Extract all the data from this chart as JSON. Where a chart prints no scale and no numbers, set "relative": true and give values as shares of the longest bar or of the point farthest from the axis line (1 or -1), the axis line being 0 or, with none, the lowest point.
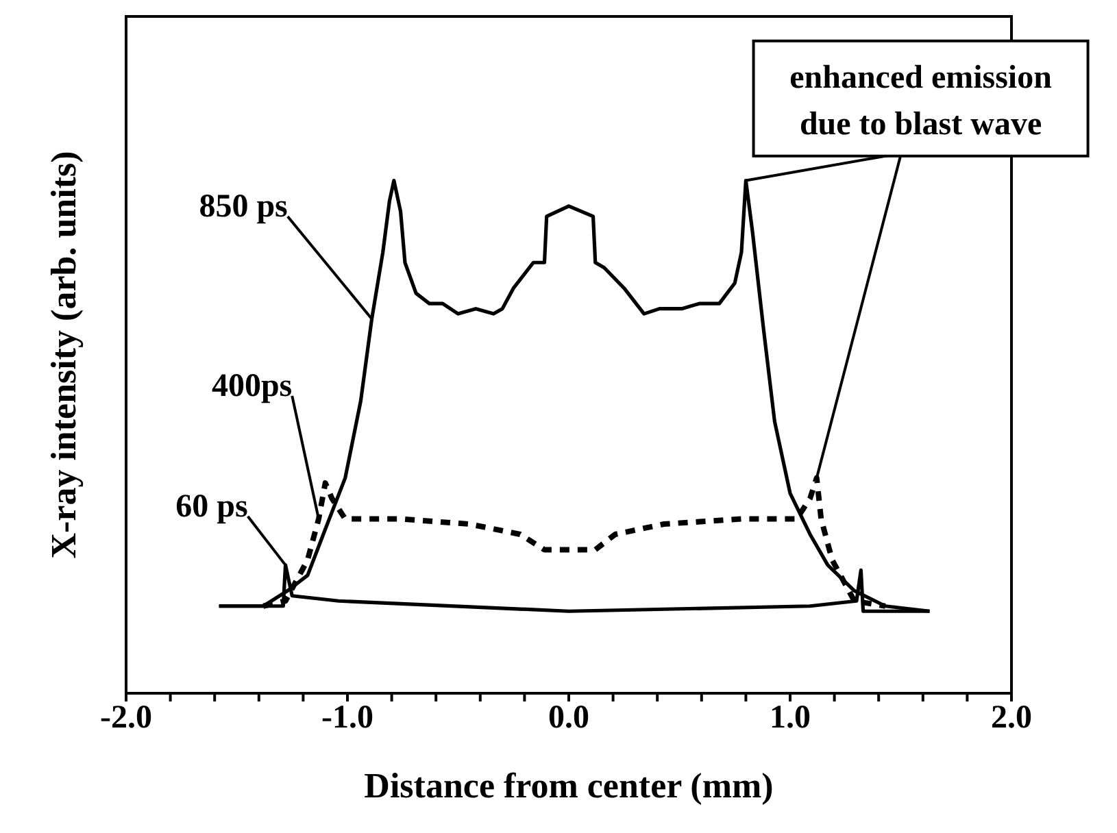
{
  "chart_data": {
    "type": "line",
    "relative": true,
    "xlabel": "Distance from center (mm)",
    "ylabel": "X-ray intensity (arb. units)",
    "xlim": [
      -2,
      2
    ],
    "xticks": [
      {
        "value": -2,
        "label": "-2.0"
      },
      {
        "value": -1.8,
        "label": null
      },
      {
        "value": -1.6,
        "label": null
      },
      {
        "value": -1.4,
        "label": null
      },
      {
        "value": -1.2,
        "label": null
      },
      {
        "value": -1,
        "label": "-1.0"
      },
      {
        "value": -0.8,
        "label": null
      },
      {
        "value": -0.6,
        "label": null
      },
      {
        "value": -0.4,
        "label": null
      },
      {
        "value": -0.2,
        "label": null
      },
      {
        "value": 0,
        "label": "0.0"
      },
      {
        "value": 0.2,
        "label": null
      },
      {
        "value": 0.4,
        "label": null
      },
      {
        "value": 0.6,
        "label": null
      },
      {
        "value": 0.8,
        "label": null
      },
      {
        "value": 1,
        "label": "1.0"
      },
      {
        "value": 1.2,
        "label": null
      },
      {
        "value": 1.4,
        "label": null
      },
      {
        "value": 1.6,
        "label": null
      },
      {
        "value": 1.8,
        "label": null
      },
      {
        "value": 2,
        "label": "2.0"
      }
    ],
    "series": [
      {
        "name": "850 ps",
        "color": "#000000",
        "line_style": "solid",
        "x": [
          -1.58,
          -1.38,
          -1.27,
          -1.18,
          -1.1,
          -1.01,
          -0.94,
          -0.89,
          -0.84,
          -0.81,
          -0.79,
          -0.76,
          -0.74,
          -0.69,
          -0.63,
          -0.57,
          -0.5,
          -0.42,
          -0.34,
          -0.3,
          -0.25,
          -0.16,
          -0.11,
          -0.1,
          0,
          0.11,
          0.12,
          0.16,
          0.25,
          0.34,
          0.41,
          0.51,
          0.59,
          0.68,
          0.75,
          0.78,
          0.8,
          0.83,
          0.88,
          0.93,
          1.0,
          1.09,
          1.17,
          1.29,
          1.43,
          1.63
        ],
        "values": [
          0.17,
          0.17,
          0.2,
          0.23,
          0.32,
          0.42,
          0.57,
          0.73,
          0.86,
          0.96,
          1.0,
          0.94,
          0.84,
          0.78,
          0.76,
          0.76,
          0.74,
          0.75,
          0.74,
          0.75,
          0.79,
          0.84,
          0.84,
          0.93,
          0.95,
          0.93,
          0.84,
          0.83,
          0.79,
          0.74,
          0.75,
          0.75,
          0.76,
          0.76,
          0.8,
          0.86,
          1.0,
          0.9,
          0.71,
          0.53,
          0.39,
          0.31,
          0.25,
          0.2,
          0.17,
          0.16
        ]
      },
      {
        "name": "400ps",
        "color": "#000000",
        "line_style": "dashed",
        "x": [
          -1.38,
          -1.28,
          -1.18,
          -1.13,
          -1.1,
          -1.07,
          -1.01,
          -0.76,
          -0.45,
          -0.22,
          -0.11,
          0,
          0.12,
          0.21,
          0.43,
          0.78,
          1.03,
          1.09,
          1.12,
          1.14,
          1.19,
          1.29,
          1.43
        ],
        "values": [
          0.17,
          0.18,
          0.26,
          0.34,
          0.41,
          0.38,
          0.34,
          0.34,
          0.33,
          0.31,
          0.28,
          0.28,
          0.28,
          0.31,
          0.33,
          0.34,
          0.34,
          0.38,
          0.42,
          0.34,
          0.26,
          0.18,
          0.17
        ]
      },
      {
        "name": "60 ps",
        "color": "#000000",
        "line_style": "solid",
        "x": [
          -1.58,
          -1.29,
          -1.28,
          -1.25,
          -1.04,
          0,
          1.09,
          1.3,
          1.32,
          1.33,
          1.63
        ],
        "values": [
          0.17,
          0.17,
          0.25,
          0.19,
          0.18,
          0.16,
          0.17,
          0.18,
          0.24,
          0.16,
          0.16
        ]
      }
    ],
    "annotations": [
      "enhanced emission\ndue to blast wave"
    ]
  }
}
